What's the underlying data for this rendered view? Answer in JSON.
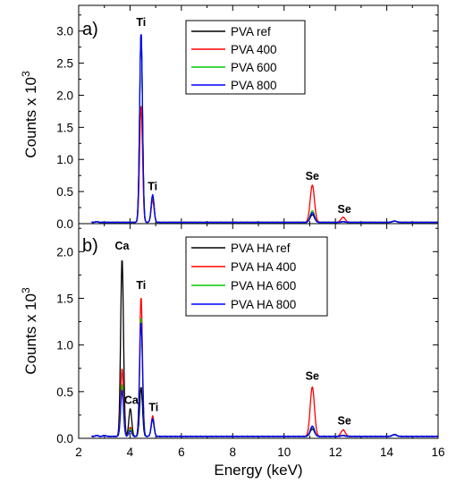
{
  "chart_data": [
    {
      "type": "line",
      "panel_label": "a)",
      "xlabel": "",
      "ylabel": "Counts x 10",
      "ylabel_exponent": "3",
      "xlim": [
        2,
        16
      ],
      "ylim": [
        0,
        3.4
      ],
      "xticks": [
        2,
        4,
        6,
        8,
        10,
        12,
        14,
        16
      ],
      "yticks": [
        0.0,
        0.5,
        1.0,
        1.5,
        2.0,
        2.5,
        3.0
      ],
      "ytick_labels": [
        "0.0",
        "0.5",
        "1.0",
        "1.5",
        "2.0",
        "2.5",
        "3.0"
      ],
      "grid": false,
      "legend_position": "top-center",
      "series": [
        {
          "name": "PVA ref",
          "color": "#000000",
          "baseline": 0.02,
          "points": [
            [
              2.7,
              0.03
            ],
            [
              2.9,
              0.02
            ],
            [
              4.43,
              2.97
            ],
            [
              4.88,
              0.44
            ],
            [
              11.1,
              0.14
            ],
            [
              12.3,
              0.03
            ],
            [
              14.3,
              0.04
            ]
          ]
        },
        {
          "name": "PVA 400",
          "color": "#ff0000",
          "baseline": 0.02,
          "points": [
            [
              2.7,
              0.03
            ],
            [
              2.9,
              0.02
            ],
            [
              4.43,
              1.85
            ],
            [
              4.88,
              0.37
            ],
            [
              11.1,
              0.6
            ],
            [
              12.3,
              0.1
            ],
            [
              14.3,
              0.04
            ]
          ]
        },
        {
          "name": "PVA 600",
          "color": "#00cc00",
          "baseline": 0.02,
          "points": [
            [
              2.7,
              0.03
            ],
            [
              2.9,
              0.02
            ],
            [
              4.43,
              2.97
            ],
            [
              4.88,
              0.44
            ],
            [
              11.1,
              0.2
            ],
            [
              12.3,
              0.03
            ],
            [
              14.3,
              0.04
            ]
          ]
        },
        {
          "name": "PVA 800",
          "color": "#0000ff",
          "baseline": 0.02,
          "points": [
            [
              2.7,
              0.03
            ],
            [
              2.9,
              0.02
            ],
            [
              4.43,
              2.99
            ],
            [
              4.88,
              0.45
            ],
            [
              11.1,
              0.17
            ],
            [
              12.3,
              0.03
            ],
            [
              14.3,
              0.04
            ]
          ]
        }
      ],
      "annotations": [
        {
          "text": "Ti",
          "x": 4.43,
          "y": 3.08
        },
        {
          "text": "Ti",
          "x": 4.88,
          "y": 0.52
        },
        {
          "text": "Se",
          "x": 11.1,
          "y": 0.68
        },
        {
          "text": "Se",
          "x": 12.35,
          "y": 0.17
        }
      ]
    },
    {
      "type": "line",
      "panel_label": "b)",
      "xlabel": "Energy (keV)",
      "ylabel": "Counts x 10",
      "ylabel_exponent": "3",
      "xlim": [
        2,
        16
      ],
      "ylim": [
        0,
        2.3
      ],
      "xticks": [
        2,
        4,
        6,
        8,
        10,
        12,
        14,
        16
      ],
      "yticks": [
        0.0,
        0.5,
        1.0,
        1.5,
        2.0
      ],
      "ytick_labels": [
        "0.0",
        "0.5",
        "1.0",
        "1.5",
        "2.0"
      ],
      "grid": false,
      "legend_position": "top-center",
      "series": [
        {
          "name": "PVA HA ref",
          "color": "#000000",
          "baseline": 0.02,
          "points": [
            [
              2.7,
              0.03
            ],
            [
              3.0,
              0.03
            ],
            [
              3.69,
              1.93
            ],
            [
              4.01,
              0.32
            ],
            [
              4.43,
              0.55
            ],
            [
              4.88,
              0.2
            ],
            [
              11.1,
              0.1
            ],
            [
              12.3,
              0.03
            ],
            [
              14.3,
              0.04
            ]
          ]
        },
        {
          "name": "PVA HA 400",
          "color": "#ff0000",
          "baseline": 0.02,
          "points": [
            [
              2.7,
              0.03
            ],
            [
              3.0,
              0.03
            ],
            [
              3.69,
              0.75
            ],
            [
              4.01,
              0.12
            ],
            [
              4.43,
              1.52
            ],
            [
              4.88,
              0.24
            ],
            [
              11.1,
              0.55
            ],
            [
              12.3,
              0.09
            ],
            [
              14.3,
              0.04
            ]
          ]
        },
        {
          "name": "PVA HA 600",
          "color": "#00cc00",
          "baseline": 0.02,
          "points": [
            [
              2.7,
              0.03
            ],
            [
              3.0,
              0.03
            ],
            [
              3.69,
              0.58
            ],
            [
              4.01,
              0.1
            ],
            [
              4.43,
              1.3
            ],
            [
              4.88,
              0.21
            ],
            [
              11.1,
              0.12
            ],
            [
              12.3,
              0.03
            ],
            [
              14.3,
              0.04
            ]
          ]
        },
        {
          "name": "PVA HA 800",
          "color": "#0000ff",
          "baseline": 0.02,
          "points": [
            [
              2.7,
              0.03
            ],
            [
              3.0,
              0.03
            ],
            [
              3.69,
              0.52
            ],
            [
              4.01,
              0.08
            ],
            [
              4.43,
              1.25
            ],
            [
              4.88,
              0.21
            ],
            [
              11.1,
              0.13
            ],
            [
              12.3,
              0.03
            ],
            [
              14.3,
              0.04
            ]
          ]
        }
      ],
      "annotations": [
        {
          "text": "Ca",
          "x": 3.69,
          "y": 2.02
        },
        {
          "text": "Ca",
          "x": 4.05,
          "y": 0.37
        },
        {
          "text": "Ti",
          "x": 4.43,
          "y": 1.6
        },
        {
          "text": "Ti",
          "x": 4.92,
          "y": 0.29
        },
        {
          "text": "Se",
          "x": 11.1,
          "y": 0.63
        },
        {
          "text": "Se",
          "x": 12.35,
          "y": 0.15
        }
      ]
    }
  ]
}
